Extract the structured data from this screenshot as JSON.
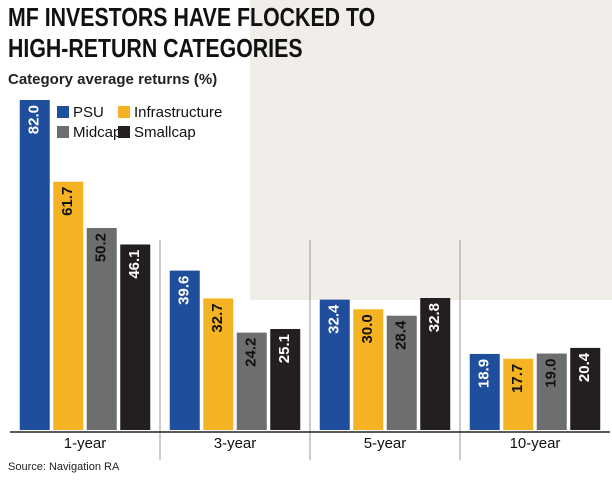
{
  "chart_data": {
    "type": "bar",
    "title": "MF INVESTORS HAVE FLOCKED TO HIGH-RETURN CATEGORIES",
    "subtitle": "Category average returns (%)",
    "source": "Source: Navigation RA",
    "categories": [
      "1-year",
      "3-year",
      "5-year",
      "10-year"
    ],
    "series": [
      {
        "name": "PSU",
        "color": "#1f4e9c",
        "values": [
          82.0,
          39.6,
          32.4,
          18.9
        ],
        "value_labels": [
          "82.0",
          "39.6",
          "32.4",
          "18.9"
        ]
      },
      {
        "name": "Infrastructure",
        "color": "#f5b324",
        "values": [
          61.7,
          32.7,
          30.0,
          17.7
        ],
        "value_labels": [
          "61.7",
          "32.7",
          "30.0",
          "17.7"
        ]
      },
      {
        "name": "Midcap",
        "color": "#6d6e70",
        "values": [
          50.2,
          24.2,
          28.4,
          19.0
        ],
        "value_labels": [
          "50.2",
          "24.2",
          "28.4",
          "19.0"
        ]
      },
      {
        "name": "Smallcap",
        "color": "#231f20",
        "values": [
          46.1,
          25.1,
          32.8,
          20.4
        ],
        "value_labels": [
          "46.1",
          "25.1",
          "32.8",
          "20.4"
        ]
      }
    ]
  }
}
